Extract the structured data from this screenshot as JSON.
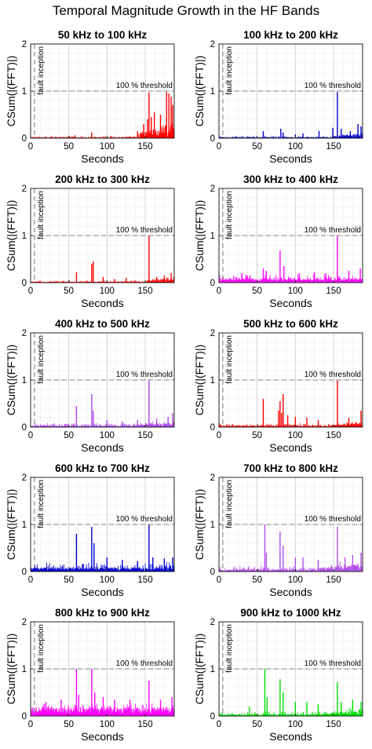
{
  "title": "Temporal Magnitude Growth in the HF Bands",
  "chart_data": [
    {
      "type": "bar",
      "title": "50 kHz to 100 kHz",
      "xlabel": "Seconds",
      "ylabel": "CSum(|(FFT)|)",
      "color": "#ff0000",
      "xlim": [
        0,
        188
      ],
      "ylim": [
        0,
        2
      ],
      "xticks": [
        0,
        50,
        100,
        150
      ],
      "yticks": [
        0,
        1,
        2
      ],
      "threshold": {
        "value": 1,
        "label": "100 % threshold"
      },
      "event": {
        "x": 5,
        "label": "fault inception"
      },
      "baseline": 0.02,
      "noise": 0.02,
      "growth_from": 140,
      "growth_amp": 0.25,
      "peaks": [
        [
          58,
          0.06
        ],
        [
          80,
          0.12
        ],
        [
          105,
          0.05
        ],
        [
          140,
          0.15
        ],
        [
          148,
          0.3
        ],
        [
          153,
          0.4
        ],
        [
          155,
          0.97
        ],
        [
          158,
          0.45
        ],
        [
          162,
          0.55
        ],
        [
          170,
          0.5
        ],
        [
          178,
          0.98
        ],
        [
          181,
          0.95
        ],
        [
          184,
          0.88
        ],
        [
          186,
          0.7
        ]
      ]
    },
    {
      "type": "bar",
      "title": "100 kHz to 200 kHz",
      "xlabel": "Seconds",
      "ylabel": "CSum(|(FFT)|)",
      "color": "#0000cc",
      "xlim": [
        0,
        188
      ],
      "ylim": [
        0,
        2
      ],
      "xticks": [
        0,
        50,
        100,
        150
      ],
      "yticks": [
        0,
        1,
        2
      ],
      "threshold": {
        "value": 1,
        "label": "100 % threshold"
      },
      "event": {
        "x": 5,
        "label": "fault inception"
      },
      "baseline": 0.02,
      "noise": 0.03,
      "growth_from": 150,
      "growth_amp": 0.08,
      "peaks": [
        [
          58,
          0.15
        ],
        [
          81,
          0.2
        ],
        [
          84,
          0.12
        ],
        [
          100,
          0.08
        ],
        [
          110,
          0.1
        ],
        [
          131,
          0.15
        ],
        [
          149,
          0.22
        ],
        [
          155,
          0.98
        ],
        [
          160,
          0.2
        ],
        [
          172,
          0.15
        ],
        [
          182,
          0.3
        ],
        [
          186,
          0.25
        ]
      ]
    },
    {
      "type": "bar",
      "title": "200 kHz to 300 kHz",
      "xlabel": "Seconds",
      "ylabel": "CSum(|(FFT)|)",
      "color": "#ff0000",
      "xlim": [
        0,
        188
      ],
      "ylim": [
        0,
        2
      ],
      "xticks": [
        0,
        50,
        100,
        150
      ],
      "yticks": [
        0,
        1,
        2
      ],
      "threshold": {
        "value": 1,
        "label": "100 % threshold"
      },
      "event": {
        "x": 5,
        "label": "fault inception"
      },
      "baseline": 0.02,
      "noise": 0.03,
      "growth_from": 150,
      "growth_amp": 0.08,
      "peaks": [
        [
          60,
          0.22
        ],
        [
          80,
          0.4
        ],
        [
          82,
          0.45
        ],
        [
          95,
          0.12
        ],
        [
          110,
          0.08
        ],
        [
          125,
          0.1
        ],
        [
          155,
          1.0
        ],
        [
          165,
          0.12
        ],
        [
          175,
          0.15
        ],
        [
          184,
          0.2
        ]
      ]
    },
    {
      "type": "bar",
      "title": "300 kHz to 400 kHz",
      "xlabel": "Seconds",
      "ylabel": "CSum(|(FFT)|)",
      "color": "#ff00ff",
      "xlim": [
        0,
        188
      ],
      "ylim": [
        0,
        2
      ],
      "xticks": [
        0,
        50,
        100,
        150
      ],
      "yticks": [
        0,
        1,
        2
      ],
      "threshold": {
        "value": 1,
        "label": "100 % threshold"
      },
      "event": {
        "x": 5,
        "label": "fault inception"
      },
      "baseline": 0.07,
      "noise": 0.1,
      "growth_from": 0,
      "growth_amp": 0,
      "peaks": [
        [
          30,
          0.2
        ],
        [
          58,
          0.3
        ],
        [
          62,
          0.25
        ],
        [
          80,
          0.68
        ],
        [
          85,
          0.35
        ],
        [
          105,
          0.2
        ],
        [
          125,
          0.22
        ],
        [
          140,
          0.2
        ],
        [
          155,
          1.0
        ],
        [
          170,
          0.25
        ],
        [
          185,
          0.3
        ]
      ]
    },
    {
      "type": "bar",
      "title": "400 kHz to 500 kHz",
      "xlabel": "Seconds",
      "ylabel": "CSum(|(FFT)|)",
      "color": "#aa44ee",
      "xlim": [
        0,
        188
      ],
      "ylim": [
        0,
        2
      ],
      "xticks": [
        0,
        50,
        100,
        150
      ],
      "yticks": [
        0,
        1,
        2
      ],
      "threshold": {
        "value": 1,
        "label": "100 % threshold"
      },
      "event": {
        "x": 5,
        "label": "fault inception"
      },
      "baseline": 0.03,
      "noise": 0.06,
      "growth_from": 140,
      "growth_amp": 0.06,
      "peaks": [
        [
          60,
          0.45
        ],
        [
          80,
          0.7
        ],
        [
          82,
          0.35
        ],
        [
          100,
          0.15
        ],
        [
          120,
          0.12
        ],
        [
          140,
          0.15
        ],
        [
          155,
          1.0
        ],
        [
          165,
          0.18
        ],
        [
          180,
          0.22
        ],
        [
          186,
          0.3
        ]
      ]
    },
    {
      "type": "bar",
      "title": "500 kHz to 600 kHz",
      "xlabel": "Seconds",
      "ylabel": "CSum(|(FFT)|)",
      "color": "#ff0000",
      "xlim": [
        0,
        188
      ],
      "ylim": [
        0,
        2
      ],
      "xticks": [
        0,
        50,
        100,
        150
      ],
      "yticks": [
        0,
        1,
        2
      ],
      "threshold": {
        "value": 1,
        "label": "100 % threshold"
      },
      "event": {
        "x": 5,
        "label": "fault inception"
      },
      "baseline": 0.03,
      "noise": 0.05,
      "growth_from": 150,
      "growth_amp": 0.06,
      "peaks": [
        [
          58,
          0.6
        ],
        [
          78,
          0.35
        ],
        [
          80,
          0.55
        ],
        [
          82,
          0.3
        ],
        [
          84,
          0.7
        ],
        [
          90,
          0.25
        ],
        [
          100,
          0.22
        ],
        [
          115,
          0.2
        ],
        [
          130,
          0.15
        ],
        [
          155,
          1.0
        ],
        [
          170,
          0.2
        ],
        [
          186,
          0.35
        ]
      ]
    },
    {
      "type": "bar",
      "title": "600 kHz to 700 kHz",
      "xlabel": "Seconds",
      "ylabel": "CSum(|(FFT)|)",
      "color": "#0000cc",
      "xlim": [
        0,
        188
      ],
      "ylim": [
        0,
        2
      ],
      "xticks": [
        0,
        50,
        100,
        150
      ],
      "yticks": [
        0,
        1,
        2
      ],
      "threshold": {
        "value": 1,
        "label": "100 % threshold"
      },
      "event": {
        "x": 5,
        "label": "fault inception"
      },
      "baseline": 0.07,
      "noise": 0.12,
      "growth_from": 0,
      "growth_amp": 0,
      "peaks": [
        [
          60,
          0.8
        ],
        [
          80,
          0.95
        ],
        [
          83,
          0.6
        ],
        [
          100,
          0.3
        ],
        [
          120,
          0.25
        ],
        [
          140,
          0.22
        ],
        [
          155,
          1.0
        ],
        [
          160,
          0.3
        ],
        [
          175,
          0.28
        ],
        [
          186,
          0.3
        ]
      ]
    },
    {
      "type": "bar",
      "title": "700 kHz to 800 kHz",
      "xlabel": "Seconds",
      "ylabel": "CSum(|(FFT)|)",
      "color": "#b14ee8",
      "xlim": [
        0,
        188
      ],
      "ylim": [
        0,
        2
      ],
      "xticks": [
        0,
        50,
        100,
        150
      ],
      "yticks": [
        0,
        1,
        2
      ],
      "threshold": {
        "value": 1,
        "label": "100 % threshold"
      },
      "event": {
        "x": 5,
        "label": "fault inception"
      },
      "baseline": 0.04,
      "noise": 0.08,
      "growth_from": 130,
      "growth_amp": 0.12,
      "peaks": [
        [
          60,
          1.0
        ],
        [
          62,
          0.4
        ],
        [
          80,
          0.85
        ],
        [
          84,
          0.55
        ],
        [
          100,
          0.3
        ],
        [
          110,
          0.3
        ],
        [
          130,
          0.25
        ],
        [
          155,
          0.95
        ],
        [
          165,
          0.3
        ],
        [
          175,
          0.35
        ],
        [
          186,
          0.4
        ]
      ]
    },
    {
      "type": "bar",
      "title": "800 kHz to 900 kHz",
      "xlabel": "Seconds",
      "ylabel": "CSum(|(FFT)|)",
      "color": "#ff00ff",
      "xlim": [
        0,
        188
      ],
      "ylim": [
        0,
        2
      ],
      "xticks": [
        0,
        50,
        100,
        150
      ],
      "yticks": [
        0,
        1,
        2
      ],
      "threshold": {
        "value": 1,
        "label": "100 % threshold"
      },
      "event": {
        "x": 5,
        "label": "fault inception"
      },
      "baseline": 0.15,
      "noise": 0.12,
      "growth_from": 0,
      "growth_amp": 0,
      "peaks": [
        [
          20,
          0.3
        ],
        [
          40,
          0.35
        ],
        [
          60,
          1.0
        ],
        [
          63,
          0.45
        ],
        [
          80,
          1.0
        ],
        [
          84,
          0.5
        ],
        [
          95,
          0.4
        ],
        [
          110,
          0.35
        ],
        [
          130,
          0.35
        ],
        [
          155,
          0.75
        ],
        [
          170,
          0.35
        ],
        [
          185,
          0.4
        ]
      ]
    },
    {
      "type": "bar",
      "title": "900 kHz to 1000 kHz",
      "xlabel": "Seconds",
      "ylabel": "CSum(|(FFT)|)",
      "color": "#00dd00",
      "xlim": [
        0,
        188
      ],
      "ylim": [
        0,
        2
      ],
      "xticks": [
        0,
        50,
        100,
        150
      ],
      "yticks": [
        0,
        1,
        2
      ],
      "threshold": {
        "value": 1,
        "label": "100 % threshold"
      },
      "event": {
        "x": 5,
        "label": "fault inception"
      },
      "baseline": 0.03,
      "noise": 0.08,
      "growth_from": 140,
      "growth_amp": 0.1,
      "peaks": [
        [
          40,
          0.2
        ],
        [
          60,
          1.0
        ],
        [
          63,
          0.4
        ],
        [
          80,
          0.78
        ],
        [
          84,
          0.5
        ],
        [
          100,
          0.3
        ],
        [
          115,
          0.3
        ],
        [
          130,
          0.25
        ],
        [
          155,
          0.72
        ],
        [
          160,
          0.3
        ],
        [
          175,
          0.35
        ],
        [
          186,
          0.3
        ]
      ]
    }
  ]
}
